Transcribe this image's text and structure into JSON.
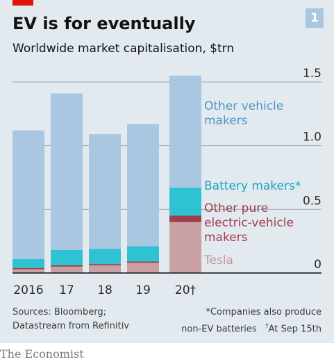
{
  "header": {
    "chart_number": "1",
    "title": "EV is for eventually",
    "subtitle": "Worldwide market capitalisation, $trn"
  },
  "footer": {
    "source_line1": "Sources: Bloomberg;",
    "source_line2": "Datastream from Refinitiv",
    "note_line1": "*Companies also produce",
    "note_line2_a": "non-EV batteries",
    "note_line2_dagger": "†",
    "note_line2_b": "At Sep 15th",
    "brand": "The Economist"
  },
  "colors": {
    "tesla": "#c9a1a5",
    "other_pure_ev": "#a23d4a",
    "battery": "#2fc2d3",
    "other_vehicle": "#a9c7e0",
    "other_vehicle_label": "#4d97c6",
    "battery_label": "#1aa6bd",
    "other_pure_ev_label": "#a23d4a",
    "tesla_label": "#c5949a",
    "gridline": "#9aa7b2",
    "baseline": "#121212"
  },
  "chart_data": {
    "type": "bar",
    "stacked": true,
    "categories": [
      "2016",
      "17",
      "18",
      "19",
      "20†"
    ],
    "series": [
      {
        "name": "Tesla",
        "values": [
          0.03,
          0.05,
          0.06,
          0.08,
          0.4
        ]
      },
      {
        "name": "Other pure electric-vehicle makers",
        "values": [
          0.01,
          0.01,
          0.01,
          0.01,
          0.05
        ]
      },
      {
        "name": "Battery makers*",
        "values": [
          0.07,
          0.12,
          0.12,
          0.12,
          0.22
        ]
      },
      {
        "name": "Other vehicle makers",
        "values": [
          1.01,
          1.23,
          0.9,
          0.96,
          0.88
        ]
      }
    ],
    "series_labels": [
      [
        "Tesla"
      ],
      [
        "Other pure",
        "electric-vehicle",
        "makers"
      ],
      [
        "Battery makers*"
      ],
      [
        "Other vehicle",
        "makers"
      ]
    ],
    "yticks": [
      "0",
      "0.5",
      "1.0",
      "1.5"
    ],
    "ytick_values": [
      0,
      0.5,
      1.0,
      1.5
    ],
    "ylim": [
      0,
      1.56
    ],
    "xlabel": "",
    "ylabel": "",
    "grid": true
  }
}
